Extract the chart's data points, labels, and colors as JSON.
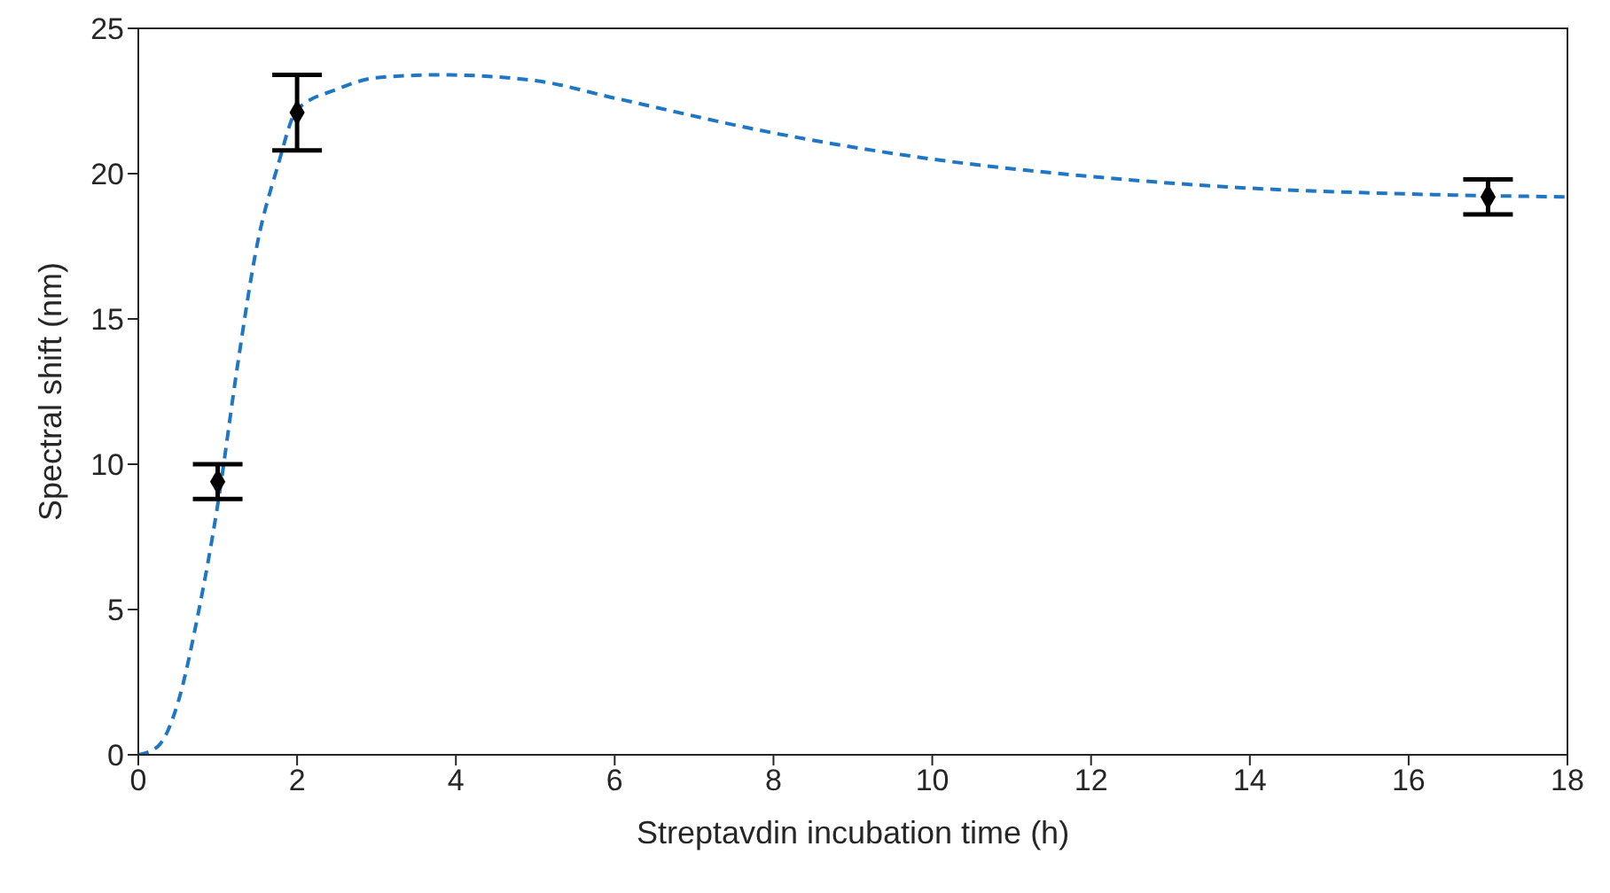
{
  "chart_data": {
    "type": "scatter",
    "xlabel": "Streptavdin incubation time (h)",
    "ylabel": "Spectral shift (nm)",
    "xlim": [
      0,
      18
    ],
    "xticks": [
      0,
      2,
      4,
      6,
      8,
      10,
      12,
      14,
      16,
      18
    ],
    "ylim": [
      0,
      25
    ],
    "yticks": [
      0,
      5,
      10,
      15,
      20,
      25
    ],
    "grid": false,
    "series": [
      {
        "type": "line",
        "color": "#1f77c4",
        "line_style": "dashed",
        "marker": "none",
        "x": [
          0,
          0.25,
          0.5,
          0.75,
          1,
          1.25,
          1.5,
          1.75,
          2,
          2.5,
          3,
          3.8,
          5,
          6,
          8,
          10,
          12,
          14,
          16,
          18
        ],
        "values": [
          0,
          0.3,
          1.8,
          4.8,
          8.6,
          13.4,
          17.6,
          20.2,
          22.2,
          22.9,
          23.3,
          23.4,
          23.2,
          22.6,
          21.4,
          20.5,
          19.9,
          19.5,
          19.3,
          19.2
        ]
      },
      {
        "color": "#000000",
        "marker": "diamond",
        "x": [
          1,
          2,
          17
        ],
        "values": [
          9.4,
          22.1,
          19.2
        ],
        "errors": [
          0.6,
          1.3,
          0.6
        ]
      }
    ]
  }
}
